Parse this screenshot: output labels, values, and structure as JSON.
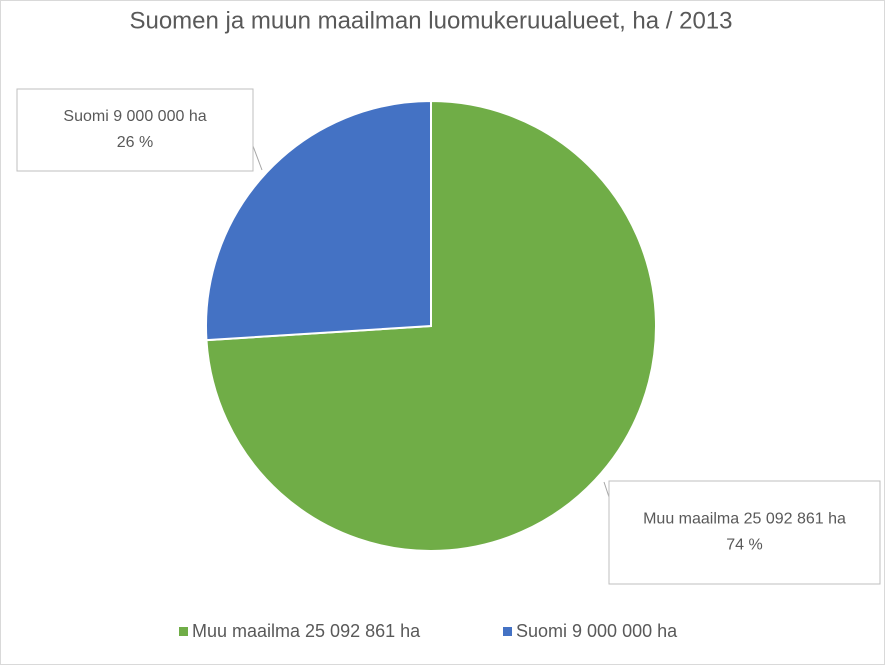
{
  "chart_data": {
    "type": "pie",
    "title": "Suomen ja muun maailman luomukeruualueet, ha / 2013",
    "categories": [
      "Muu maailma 25 092 861 ha",
      "Suomi 9 000 000 ha"
    ],
    "values": [
      74,
      26
    ],
    "value_labels": [
      "74 %",
      "26 %"
    ],
    "colors": [
      "#70ad47",
      "#4472c4"
    ],
    "legend": "bottom"
  }
}
